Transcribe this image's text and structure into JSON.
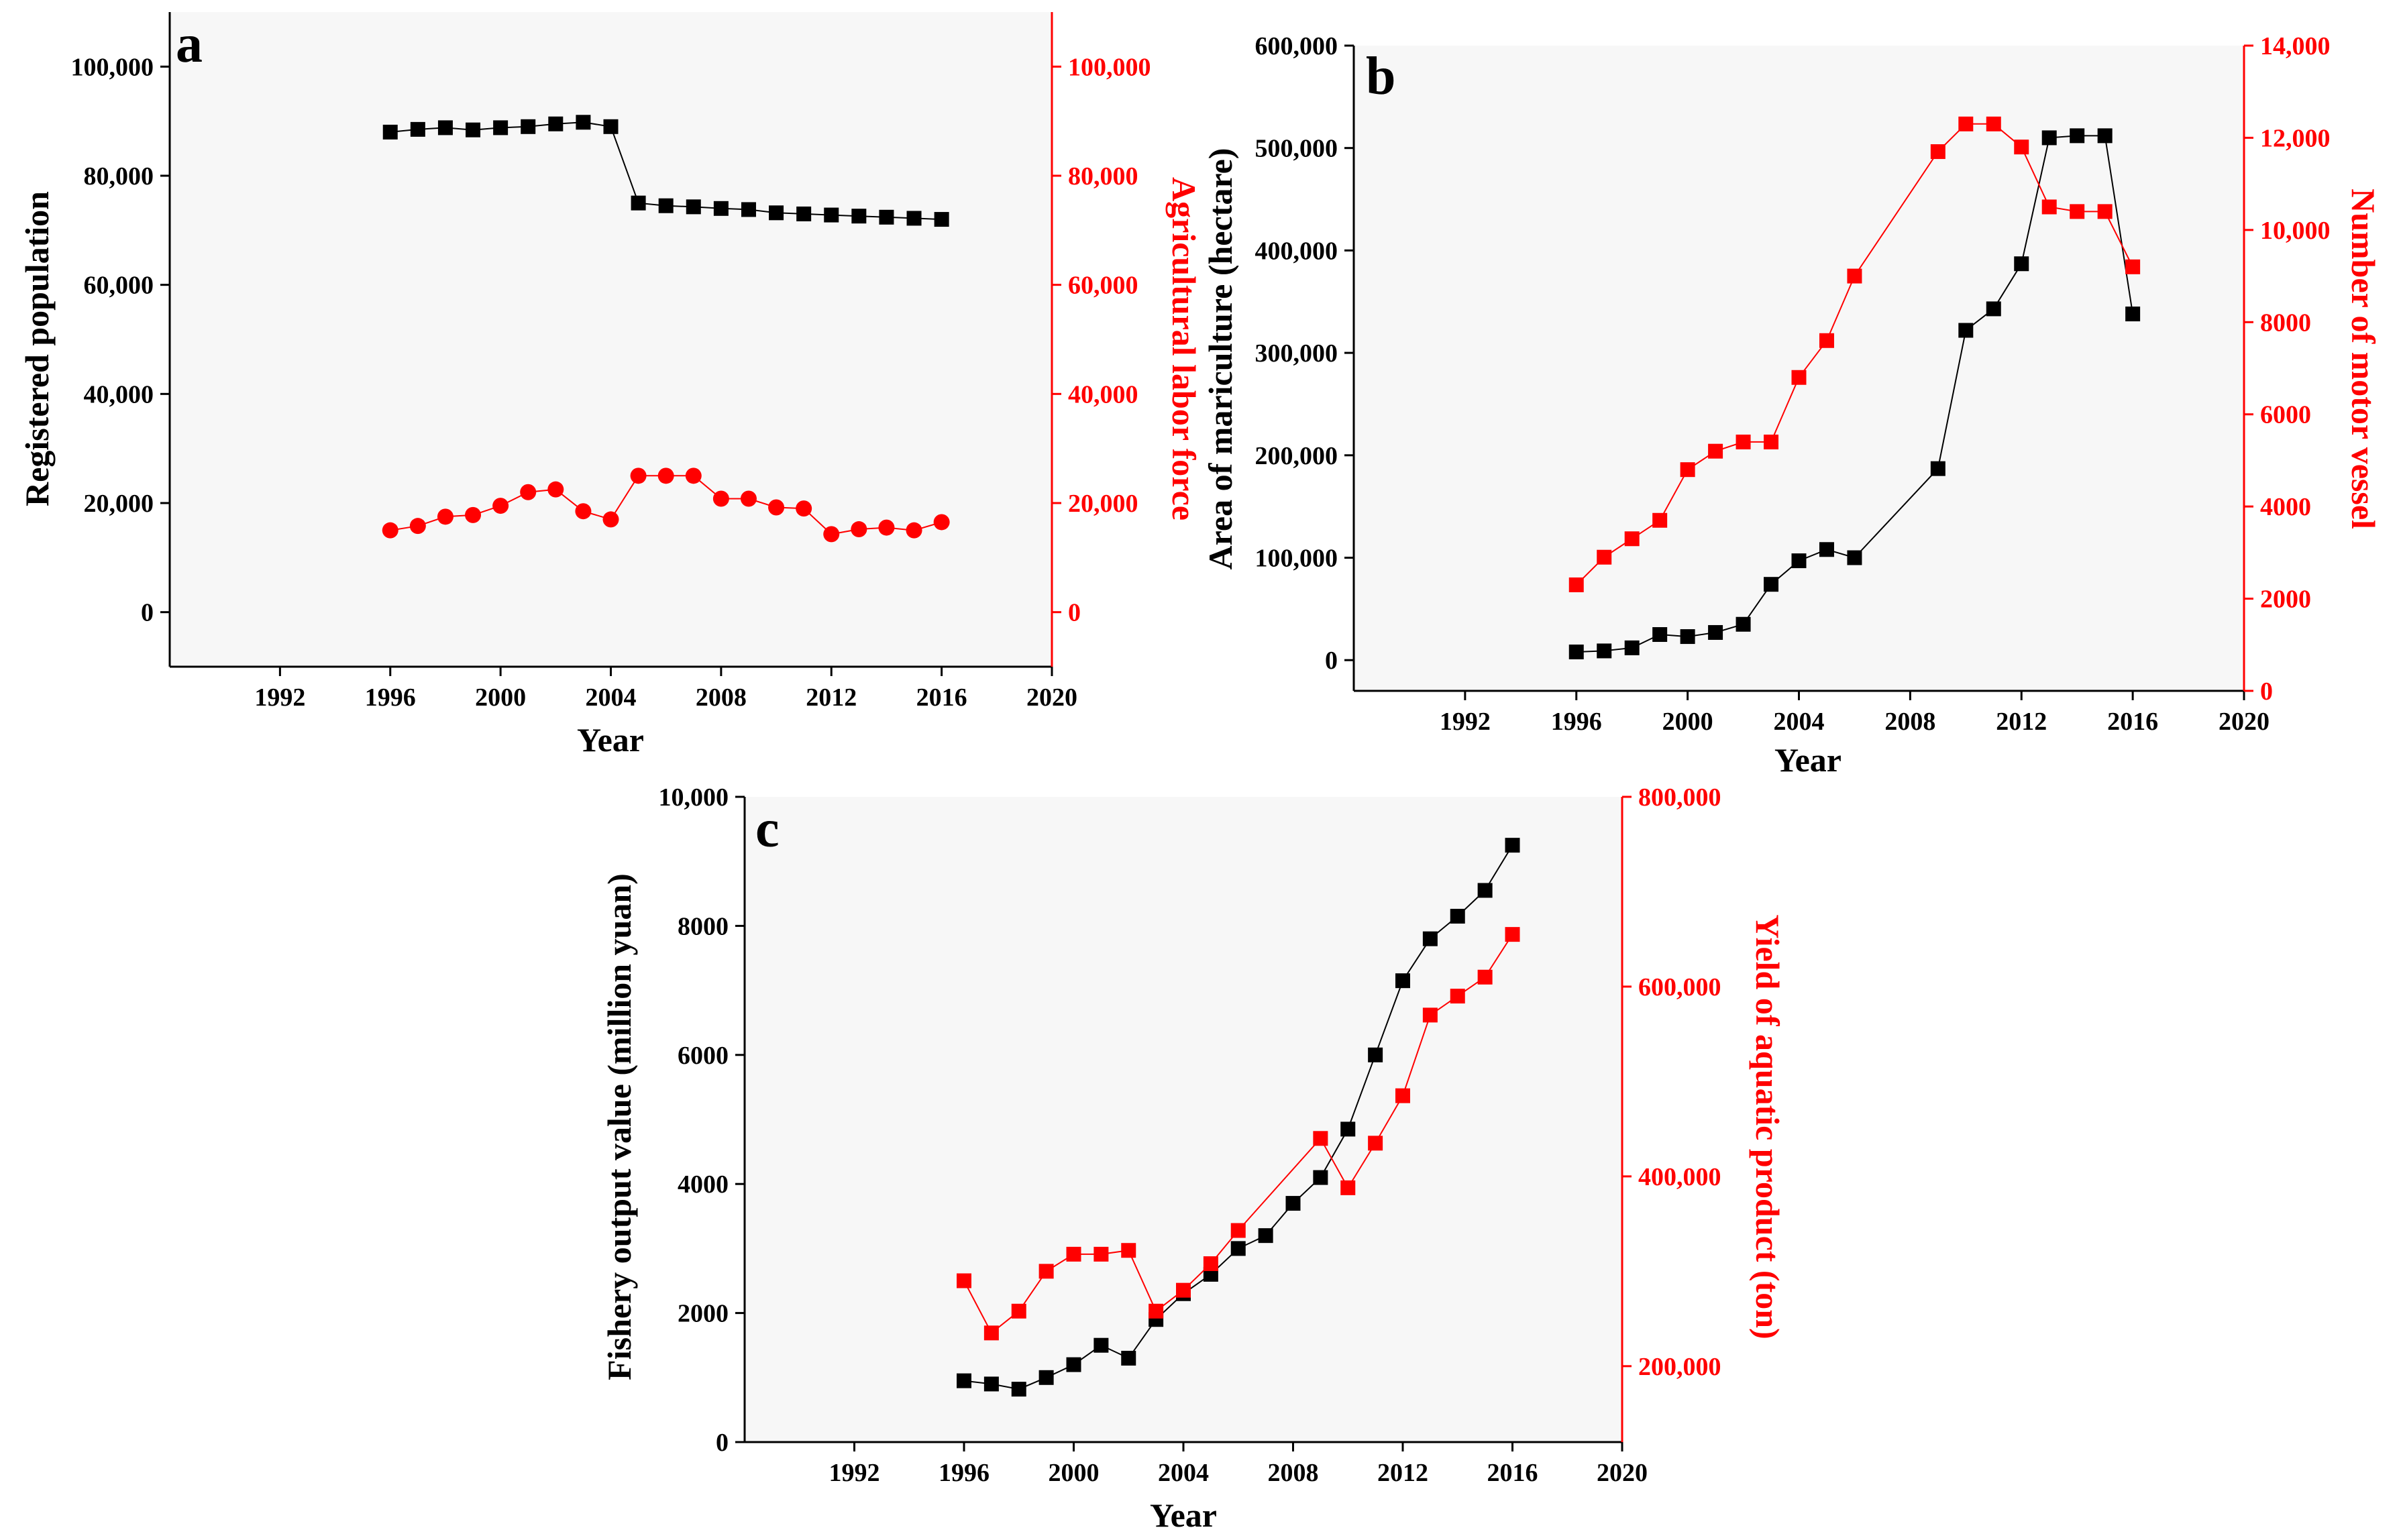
{
  "panels": [
    {
      "id": "a",
      "letter": "a",
      "xlabel": "Year",
      "ylabel_left": "Registered population",
      "ylabel_right": "Agricultural labor force",
      "left_color": "#000000",
      "right_color": "#ff0000"
    },
    {
      "id": "b",
      "letter": "b",
      "xlabel": "Year",
      "ylabel_left": "Area of mariculture (hectare)",
      "ylabel_right": "Number of motor vessel",
      "left_color": "#000000",
      "right_color": "#ff0000"
    },
    {
      "id": "c",
      "letter": "c",
      "xlabel": "Year",
      "ylabel_left": "Fishery output value (million yuan)",
      "ylabel_right": "Yield of aquatic product (ton)",
      "left_color": "#000000",
      "right_color": "#ff0000"
    }
  ],
  "chart_data": [
    {
      "type": "line",
      "panel": "a",
      "xlabel": "Year",
      "xlim": [
        1988,
        2020
      ],
      "xticks": [
        1992,
        1996,
        2000,
        2004,
        2008,
        2012,
        2016,
        2020
      ],
      "xtick_labels": [
        "1992",
        "1996",
        "2000",
        "2004",
        "2008",
        "2012",
        "2016",
        "2020"
      ],
      "y_left": {
        "label": "Registered population",
        "lim": [
          -10000,
          110000
        ],
        "ticks": [
          0,
          20000,
          40000,
          60000,
          80000,
          100000
        ],
        "tick_labels": [
          "0",
          "20,000",
          "40,000",
          "60,000",
          "80,000",
          "100,000"
        ]
      },
      "y_right": {
        "label": "Agricultural labor force",
        "lim": [
          -10000,
          110000
        ],
        "ticks": [
          0,
          20000,
          40000,
          60000,
          80000,
          100000
        ],
        "tick_labels": [
          "0",
          "20,000",
          "40,000",
          "60,000",
          "80,000",
          "100,000"
        ]
      },
      "series": [
        {
          "name": "Registered population",
          "axis": "left",
          "marker": "square",
          "color": "#000000",
          "x": [
            1996,
            1997,
            1998,
            1999,
            2000,
            2001,
            2002,
            2003,
            2004,
            2005,
            2006,
            2007,
            2008,
            2009,
            2010,
            2011,
            2012,
            2013,
            2014,
            2015,
            2016
          ],
          "values": [
            88000,
            88500,
            88800,
            88400,
            88800,
            89000,
            89500,
            89800,
            89000,
            75000,
            74500,
            74300,
            74000,
            73800,
            73200,
            73000,
            72800,
            72600,
            72400,
            72200,
            72000
          ]
        },
        {
          "name": "Agricultural labor force",
          "axis": "right",
          "marker": "circle",
          "color": "#ff0000",
          "x": [
            1996,
            1997,
            1998,
            1999,
            2000,
            2001,
            2002,
            2003,
            2004,
            2005,
            2006,
            2007,
            2008,
            2009,
            2010,
            2011,
            2012,
            2013,
            2014,
            2015,
            2016
          ],
          "values": [
            15000,
            15800,
            17500,
            17800,
            19500,
            22000,
            22500,
            18500,
            17000,
            25000,
            25000,
            25000,
            20800,
            20800,
            19200,
            19000,
            14300,
            15200,
            15500,
            15000,
            16500
          ]
        }
      ]
    },
    {
      "type": "line",
      "panel": "b",
      "xlabel": "Year",
      "xlim": [
        1988,
        2020
      ],
      "xticks": [
        1992,
        1996,
        2000,
        2004,
        2008,
        2012,
        2016,
        2020
      ],
      "xtick_labels": [
        "1992",
        "1996",
        "2000",
        "2004",
        "2008",
        "2012",
        "2016",
        "2020"
      ],
      "y_left": {
        "label": "Area of mariculture (hectare)",
        "lim": [
          -30000,
          600000
        ],
        "ticks": [
          0,
          100000,
          200000,
          300000,
          400000,
          500000,
          600000
        ],
        "tick_labels": [
          "0",
          "100,000",
          "200,000",
          "300,000",
          "400,000",
          "500,000",
          "600,000"
        ]
      },
      "y_right": {
        "label": "Number of motor vessel",
        "lim": [
          0,
          14000
        ],
        "ticks": [
          0,
          2000,
          4000,
          6000,
          8000,
          10000,
          12000,
          14000
        ],
        "tick_labels": [
          "0",
          "2000",
          "4000",
          "6000",
          "8000",
          "10,000",
          "12,000",
          "14,000"
        ]
      },
      "series": [
        {
          "name": "Area of mariculture (hectare)",
          "axis": "left",
          "marker": "square",
          "color": "#000000",
          "x": [
            1996,
            1997,
            1998,
            1999,
            2000,
            2001,
            2002,
            2003,
            2004,
            2005,
            2006,
            2009,
            2010,
            2011,
            2012,
            2013,
            2014,
            2015,
            2016
          ],
          "values": [
            8000,
            9000,
            12000,
            25000,
            23000,
            27000,
            35000,
            74000,
            97000,
            108000,
            100000,
            187000,
            322000,
            343000,
            387000,
            510000,
            512000,
            512000,
            338000
          ]
        },
        {
          "name": "Number of motor vessel",
          "axis": "right",
          "marker": "square",
          "color": "#ff0000",
          "x": [
            1996,
            1997,
            1998,
            1999,
            2000,
            2001,
            2002,
            2003,
            2004,
            2005,
            2006,
            2009,
            2010,
            2011,
            2012,
            2013,
            2014,
            2015,
            2016
          ],
          "values": [
            2300,
            2900,
            3300,
            3700,
            4800,
            5200,
            5400,
            5400,
            6800,
            7600,
            9000,
            11700,
            12300,
            12300,
            11800,
            10500,
            10400,
            10400,
            9200
          ]
        }
      ]
    },
    {
      "type": "line",
      "panel": "c",
      "xlabel": "Year",
      "xlim": [
        1988,
        2020
      ],
      "xticks": [
        1992,
        1996,
        2000,
        2004,
        2008,
        2012,
        2016,
        2020
      ],
      "xtick_labels": [
        "1992",
        "1996",
        "2000",
        "2004",
        "2008",
        "2012",
        "2016",
        "2020"
      ],
      "y_left": {
        "label": "Fishery output value (million yuan)",
        "lim": [
          0,
          10000
        ],
        "ticks": [
          0,
          2000,
          4000,
          6000,
          8000,
          10000
        ],
        "tick_labels": [
          "0",
          "2000",
          "4000",
          "6000",
          "8000",
          "10,000"
        ]
      },
      "y_right": {
        "label": "Yield of aquatic product (ton)",
        "lim": [
          120000,
          800000
        ],
        "ticks": [
          200000,
          400000,
          600000,
          800000
        ],
        "tick_labels": [
          "200,000",
          "400,000",
          "600,000",
          "800,000"
        ]
      },
      "series": [
        {
          "name": "Fishery output value (million yuan)",
          "axis": "left",
          "marker": "square",
          "color": "#000000",
          "x": [
            1996,
            1997,
            1998,
            1999,
            2000,
            2001,
            2002,
            2003,
            2004,
            2005,
            2006,
            2007,
            2008,
            2009,
            2010,
            2011,
            2012,
            2013,
            2014,
            2015,
            2016
          ],
          "values": [
            950,
            900,
            820,
            1000,
            1200,
            1500,
            1300,
            1900,
            2300,
            2600,
            3000,
            3200,
            3700,
            4100,
            4850,
            6000,
            7150,
            7800,
            8150,
            8550,
            9250
          ]
        },
        {
          "name": "Yield of aquatic product (ton)",
          "axis": "right",
          "marker": "square",
          "color": "#ff0000",
          "x": [
            1996,
            1997,
            1998,
            1999,
            2000,
            2001,
            2002,
            2003,
            2004,
            2005,
            2006,
            2009,
            2010,
            2011,
            2012,
            2013,
            2014,
            2015,
            2016
          ],
          "values": [
            290000,
            235000,
            258000,
            300000,
            318000,
            318000,
            322000,
            258000,
            280000,
            308000,
            343000,
            440000,
            388000,
            435000,
            485000,
            570000,
            590000,
            610000,
            655000
          ]
        }
      ]
    }
  ]
}
